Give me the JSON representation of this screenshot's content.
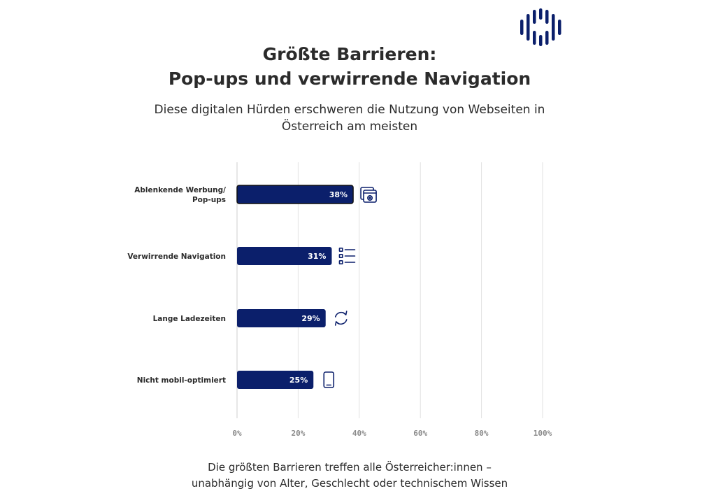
{
  "header": {
    "title_line1": "Größte Barrieren:",
    "title_line2": "Pop-ups und verwirrende Navigation",
    "subtitle_line1": "Diese digitalen Hürden erschweren die Nutzung von Webseiten in",
    "subtitle_line2": "Österreich am meisten"
  },
  "footer": {
    "line1": "Die größten Barrieren treffen alle Österreicher:innen –",
    "line2": "unabhängig von Alter, Geschlecht oder technischem Wissen"
  },
  "colors": {
    "bar": "#0b1f6b",
    "accent": "#0b1f6b",
    "grid": "#e2e2e2",
    "tick": "#8a8a8a"
  },
  "chart_data": {
    "type": "bar",
    "orientation": "horizontal",
    "title": "Größte Barrieren: Pop-ups und verwirrende Navigation",
    "subtitle": "Diese digitalen Hürden erschweren die Nutzung von Webseiten in Österreich am meisten",
    "xlabel": "",
    "ylabel": "",
    "xlim": [
      0,
      100
    ],
    "grid": true,
    "categories": [
      {
        "lines": [
          "Ablenkende Werbung/",
          "Pop-ups"
        ],
        "icon": "browser-settings-icon"
      },
      {
        "lines": [
          "Verwirrende Navigation"
        ],
        "icon": "list-icon"
      },
      {
        "lines": [
          "Lange Ladezeiten"
        ],
        "icon": "refresh-icon"
      },
      {
        "lines": [
          "Nicht mobil-optimiert"
        ],
        "icon": "smartphone-icon"
      }
    ],
    "values": [
      38,
      31,
      29,
      25
    ],
    "value_labels": [
      "38%",
      "31%",
      "29%",
      "25%"
    ],
    "ticks": [
      0,
      20,
      40,
      60,
      80,
      100
    ],
    "tick_labels": [
      "0%",
      "20%",
      "40%",
      "60%",
      "80%",
      "100%"
    ]
  }
}
